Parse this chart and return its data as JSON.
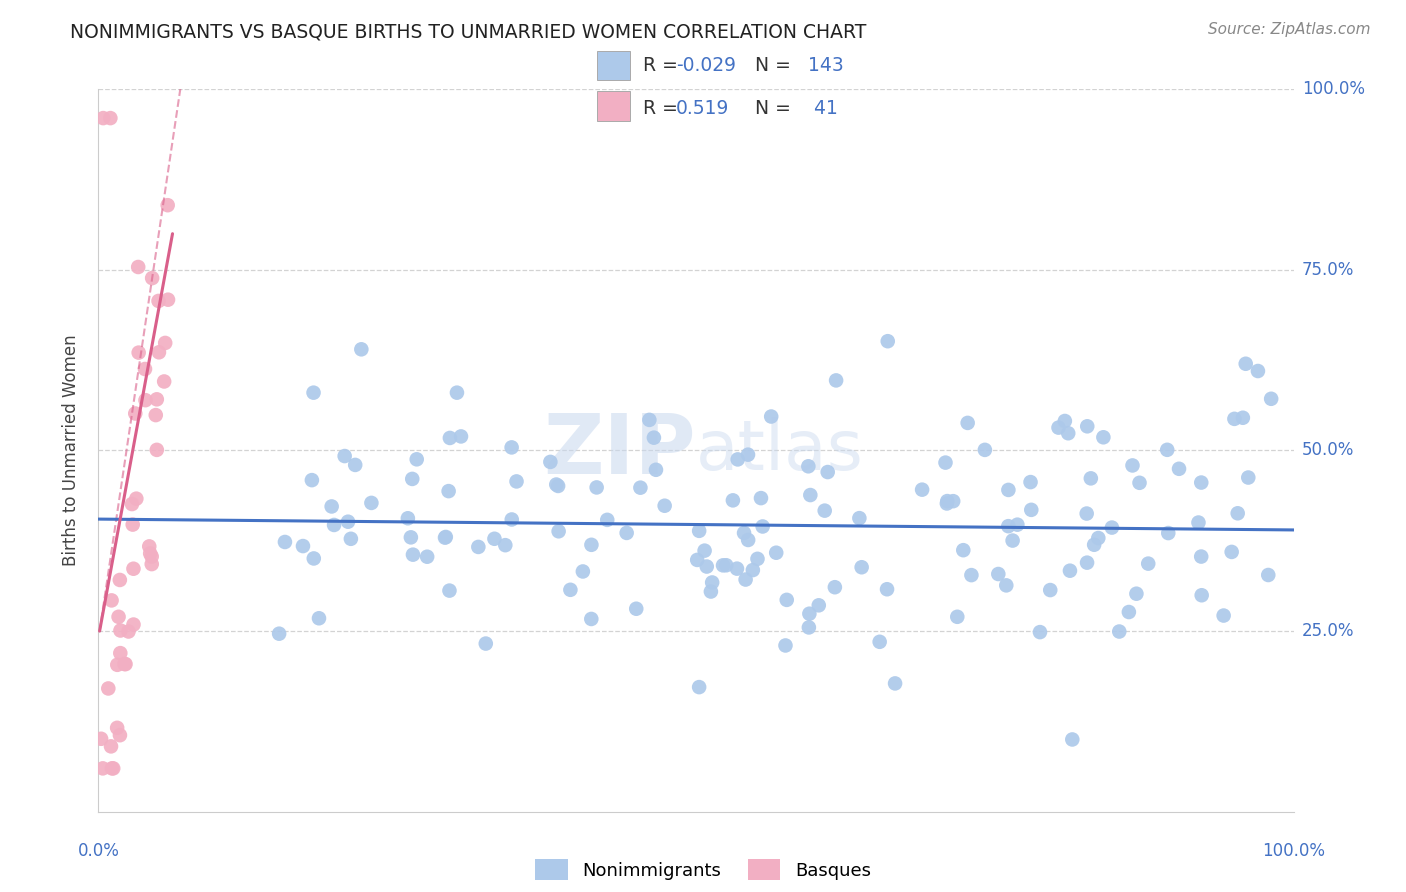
{
  "title": "NONIMMIGRANTS VS BASQUE BIRTHS TO UNMARRIED WOMEN CORRELATION CHART",
  "source": "Source: ZipAtlas.com",
  "ylabel": "Births to Unmarried Women",
  "blue_color": "#adc9ea",
  "pink_color": "#f2afc3",
  "blue_line_color": "#4472c4",
  "pink_line_color": "#d95f8a",
  "watermark_zip": "ZIP",
  "watermark_atlas": "atlas",
  "background_color": "#ffffff",
  "grid_color": "#c8c8c8",
  "legend_text_color": "#4472c4",
  "legend_label_color": "#333333",
  "r_blue": "-0.029",
  "n_blue": "143",
  "r_pink": "0.519",
  "n_pink": "41",
  "xmin": 0.0,
  "xmax": 1.0,
  "ymin": 0.0,
  "ymax": 1.0,
  "yticks": [
    0.25,
    0.5,
    0.75,
    1.0
  ],
  "ytick_labels": [
    "25.0%",
    "50.0%",
    "75.0%",
    "100.0%"
  ]
}
